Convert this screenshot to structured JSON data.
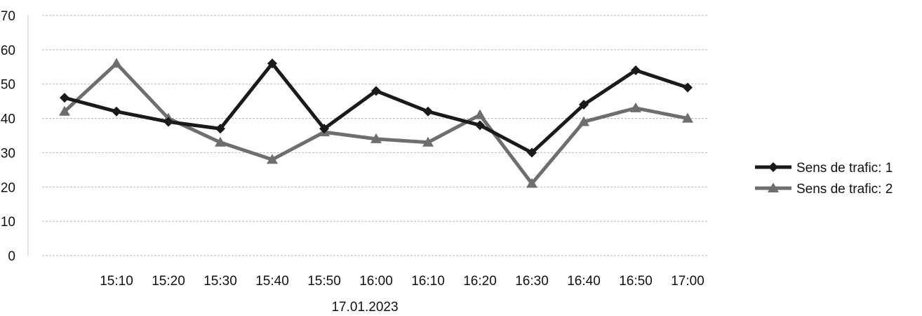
{
  "chart_data": {
    "type": "line",
    "title": "",
    "xlabel": "17.01.2023",
    "ylabel": "",
    "x": [
      "",
      "15:10",
      "15:20",
      "15:30",
      "15:40",
      "15:50",
      "16:00",
      "16:10",
      "16:20",
      "16:30",
      "16:40",
      "16:50",
      "17:00"
    ],
    "ylim": [
      0,
      70
    ],
    "yticks": [
      0,
      10,
      20,
      30,
      40,
      50,
      60,
      70
    ],
    "grid": true,
    "legend_position": "right",
    "series": [
      {
        "name": "Sens de trafic: 1",
        "marker": "diamond",
        "color": "#1a1a1a",
        "values": [
          46,
          42,
          39,
          37,
          56,
          37,
          48,
          42,
          38,
          30,
          44,
          54,
          49
        ]
      },
      {
        "name": "Sens de trafic: 2",
        "marker": "triangle",
        "color": "#6e6e6e",
        "values": [
          42,
          56,
          40,
          33,
          28,
          36,
          34,
          33,
          41,
          21,
          39,
          43,
          40
        ]
      }
    ]
  }
}
